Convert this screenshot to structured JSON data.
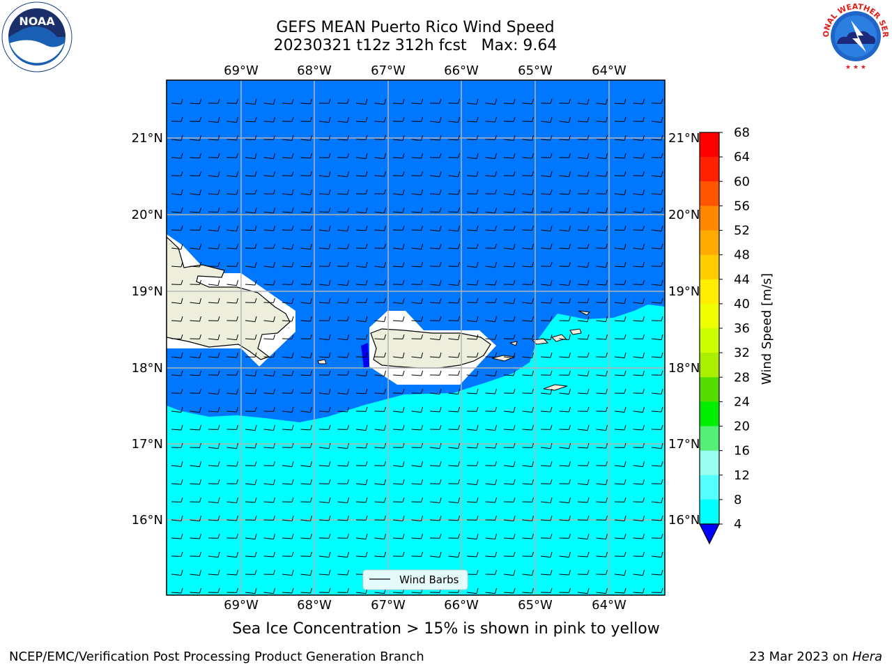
{
  "title": {
    "line1": "GEFS MEAN Puerto Rico Wind Speed",
    "line2": "20230321 t12z 312h fcst   Max: 9.64"
  },
  "logos": {
    "left": "NOAA",
    "right": "NATIONAL WEATHER SERVICE"
  },
  "map": {
    "lon_labels": [
      "69°W",
      "68°W",
      "67°W",
      "66°W",
      "65°W",
      "64°W"
    ],
    "lat_labels": [
      "21°N",
      "20°N",
      "19°N",
      "18°N",
      "17°N",
      "16°N"
    ],
    "legend_label": "Wind Barbs"
  },
  "colorbar": {
    "label": "Wind Speed [m/s]",
    "ticks": [
      "68",
      "64",
      "60",
      "56",
      "52",
      "48",
      "44",
      "40",
      "36",
      "32",
      "28",
      "24",
      "20",
      "16",
      "12",
      "8",
      "4"
    ],
    "colors": [
      "#ff0000",
      "#ff2200",
      "#ff5500",
      "#ff8800",
      "#ffaa00",
      "#ffcc00",
      "#ffee00",
      "#eeff00",
      "#ccff00",
      "#aaee00",
      "#55dd00",
      "#00ee00",
      "#55ee77",
      "#99ffee",
      "#55ffff",
      "#00ffff",
      "#0077ff"
    ],
    "extend_color": "#0000ff"
  },
  "colors": {
    "ocean_low": "#0077ff",
    "ocean_high": "#00ffff",
    "land": "#eeeedd"
  },
  "footer": {
    "note": "Sea Ice Concentration > 15% is shown in pink to yellow",
    "credit": "NCEP/EMC/Verification Post Processing Product Generation Branch",
    "date": "23 Mar 2023 on ",
    "machine": "Hera"
  }
}
